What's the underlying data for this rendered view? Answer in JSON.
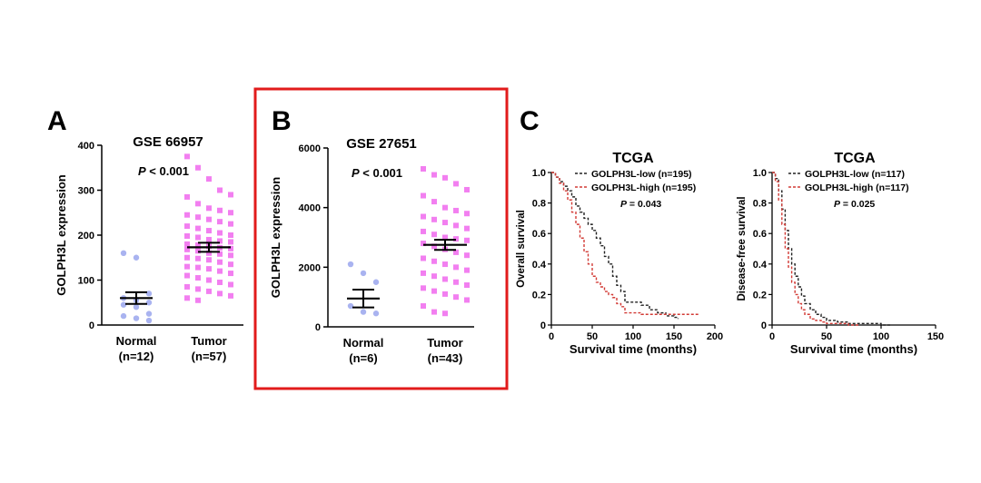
{
  "panels": {
    "A": {
      "letter": "A"
    },
    "B": {
      "letter": "B"
    },
    "C": {
      "letter": "C"
    }
  },
  "colors": {
    "normal_points": "#a9b3f0",
    "tumor_points": "#f27ff0",
    "highlight_box": "#e21b1b",
    "low_curve": "#222222",
    "high_curve": "#d23b36"
  },
  "chart_data": [
    {
      "type": "scatter",
      "title": "GSE 66957",
      "pvalue": {
        "p": "P",
        "rest": " < 0.001"
      },
      "ylabel": "GOLPH3L expression",
      "ylim": [
        0,
        400
      ],
      "yticks": [
        "0",
        "100",
        "200",
        "300",
        "400"
      ],
      "ytick_values": [
        0,
        100,
        200,
        300,
        400
      ],
      "categories": [
        {
          "name": "Normal",
          "n": "(n=12)",
          "mean": 60,
          "sem_low": 47,
          "sem_high": 73,
          "values": [
            160,
            150,
            70,
            60,
            55,
            50,
            45,
            40,
            25,
            20,
            15,
            10
          ]
        },
        {
          "name": "Tumor",
          "n": "(n=57)",
          "mean": 173,
          "sem_low": 163,
          "sem_high": 183,
          "values": [
            375,
            350,
            325,
            300,
            290,
            285,
            270,
            260,
            255,
            250,
            245,
            240,
            235,
            230,
            225,
            220,
            215,
            210,
            205,
            200,
            198,
            195,
            190,
            187,
            185,
            180,
            178,
            175,
            172,
            170,
            168,
            165,
            160,
            158,
            155,
            150,
            148,
            145,
            140,
            135,
            130,
            128,
            125,
            120,
            115,
            110,
            105,
            100,
            95,
            90,
            85,
            80,
            75,
            70,
            65,
            60,
            55
          ]
        }
      ]
    },
    {
      "type": "scatter",
      "title": "GSE 27651",
      "pvalue": {
        "p": "P",
        "rest": " < 0.001"
      },
      "ylabel": "GOLPH3L expression",
      "ylim": [
        0,
        6000
      ],
      "yticks": [
        "0",
        "2000",
        "4000",
        "6000"
      ],
      "ytick_values": [
        0,
        2000,
        4000,
        6000
      ],
      "categories": [
        {
          "name": "Normal",
          "n": "(n=6)",
          "mean": 950,
          "sem_low": 650,
          "sem_high": 1250,
          "values": [
            2100,
            1800,
            1500,
            700,
            500,
            450
          ]
        },
        {
          "name": "Tumor",
          "n": "(n=43)",
          "mean": 2750,
          "sem_low": 2580,
          "sem_high": 2920,
          "values": [
            5300,
            5100,
            5000,
            4800,
            4600,
            4400,
            4200,
            4000,
            3900,
            3800,
            3700,
            3600,
            3500,
            3400,
            3300,
            3200,
            3100,
            3000,
            2950,
            2900,
            2800,
            2700,
            2600,
            2500,
            2400,
            2300,
            2200,
            2100,
            2000,
            1900,
            1800,
            1700,
            1600,
            1500,
            1400,
            1300,
            1200,
            1100,
            1000,
            900,
            700,
            500,
            450
          ]
        }
      ]
    },
    {
      "type": "line",
      "title": "TCGA",
      "xlabel": "Survival time (months)",
      "ylabel": "Overall survival",
      "xlim": [
        0,
        200
      ],
      "ylim": [
        0,
        1.0
      ],
      "xticks": [
        "0",
        "50",
        "100",
        "150",
        "200"
      ],
      "xtick_values": [
        0,
        50,
        100,
        150,
        200
      ],
      "yticks": [
        "0",
        "0.2",
        "0.4",
        "0.6",
        "0.8",
        "1.0"
      ],
      "ytick_values": [
        0,
        0.2,
        0.4,
        0.6,
        0.8,
        1.0
      ],
      "legend": [
        "GOLPH3L-low (n=195)",
        "GOLPH3L-high (n=195)"
      ],
      "pvalue": {
        "p": "P",
        "rest": " = 0.043"
      },
      "series": [
        {
          "name": "GOLPH3L-low (n=195)",
          "x": [
            0,
            5,
            10,
            15,
            20,
            25,
            30,
            35,
            40,
            45,
            50,
            55,
            60,
            65,
            70,
            75,
            80,
            85,
            90,
            100,
            110,
            120,
            130,
            140,
            150,
            155
          ],
          "y": [
            1.0,
            0.97,
            0.94,
            0.91,
            0.88,
            0.84,
            0.78,
            0.74,
            0.7,
            0.66,
            0.62,
            0.57,
            0.52,
            0.45,
            0.4,
            0.32,
            0.26,
            0.22,
            0.15,
            0.15,
            0.13,
            0.1,
            0.08,
            0.06,
            0.05,
            0.04
          ]
        },
        {
          "name": "GOLPH3L-high (n=195)",
          "x": [
            0,
            5,
            10,
            15,
            20,
            25,
            30,
            35,
            40,
            45,
            50,
            55,
            60,
            65,
            70,
            75,
            80,
            85,
            90,
            100,
            110,
            120,
            140,
            160,
            180
          ],
          "y": [
            1.0,
            0.97,
            0.93,
            0.88,
            0.82,
            0.74,
            0.66,
            0.57,
            0.48,
            0.4,
            0.32,
            0.28,
            0.25,
            0.22,
            0.2,
            0.18,
            0.14,
            0.12,
            0.08,
            0.08,
            0.07,
            0.07,
            0.07,
            0.07,
            0.07
          ]
        }
      ]
    },
    {
      "type": "line",
      "title": "TCGA",
      "xlabel": "Survival time (months)",
      "ylabel": "Disease-free survival",
      "xlim": [
        0,
        150
      ],
      "ylim": [
        0,
        1.0
      ],
      "xticks": [
        "0",
        "50",
        "100",
        "150"
      ],
      "xtick_values": [
        0,
        50,
        100,
        150
      ],
      "yticks": [
        "0",
        "0.2",
        "0.4",
        "0.6",
        "0.8",
        "1.0"
      ],
      "ytick_values": [
        0,
        0.2,
        0.4,
        0.6,
        0.8,
        1.0
      ],
      "legend": [
        "GOLPH3L-low (n=117)",
        "GOLPH3L-high (n=117)"
      ],
      "pvalue": {
        "p": "P",
        "rest": " = 0.025"
      },
      "series": [
        {
          "name": "GOLPH3L-low (n=117)",
          "x": [
            0,
            3,
            6,
            9,
            12,
            15,
            18,
            21,
            24,
            27,
            30,
            35,
            40,
            45,
            50,
            60,
            70,
            80,
            90,
            100,
            110
          ],
          "y": [
            1.0,
            0.96,
            0.88,
            0.76,
            0.62,
            0.5,
            0.4,
            0.32,
            0.25,
            0.19,
            0.14,
            0.1,
            0.07,
            0.05,
            0.03,
            0.02,
            0.01,
            0.01,
            0.01,
            0.0,
            0.0
          ]
        },
        {
          "name": "GOLPH3L-high (n=117)",
          "x": [
            0,
            3,
            6,
            9,
            12,
            15,
            18,
            21,
            24,
            27,
            30,
            35,
            40,
            45,
            50,
            60,
            70,
            80
          ],
          "y": [
            1.0,
            0.94,
            0.82,
            0.66,
            0.5,
            0.38,
            0.28,
            0.2,
            0.14,
            0.1,
            0.07,
            0.04,
            0.03,
            0.02,
            0.01,
            0.01,
            0.0,
            0.0
          ]
        }
      ]
    }
  ]
}
